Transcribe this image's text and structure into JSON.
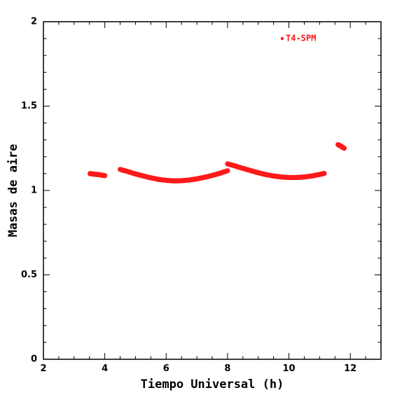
{
  "colors": {
    "series": "#ff1a1a",
    "axis": "#000000",
    "background": "#ffffff"
  },
  "chart_data": {
    "type": "scatter",
    "title": "",
    "xlabel": "Tiempo Universal (h)",
    "ylabel": "Masas de aire",
    "xlim": [
      2,
      13
    ],
    "ylim": [
      0,
      2
    ],
    "x_ticks": [
      {
        "value": 2,
        "label": "2"
      },
      {
        "value": 4,
        "label": "4"
      },
      {
        "value": 6,
        "label": "6"
      },
      {
        "value": 8,
        "label": "8"
      },
      {
        "value": 10,
        "label": "10"
      },
      {
        "value": 12,
        "label": "12"
      }
    ],
    "y_ticks": [
      {
        "value": 0,
        "label": "0"
      },
      {
        "value": 0.5,
        "label": "0.5"
      },
      {
        "value": 1,
        "label": "1"
      },
      {
        "value": 1.5,
        "label": "1.5"
      },
      {
        "value": 2,
        "label": "2"
      }
    ],
    "grid": false,
    "legend": {
      "position": "top-right",
      "label": "T4-SPM"
    },
    "series": [
      {
        "name": "T4-SPM",
        "segments": [
          {
            "x": [
              3.52,
              3.6,
              3.7,
              3.8,
              3.9,
              4.0
            ],
            "y": [
              1.1,
              1.098,
              1.096,
              1.094,
              1.091,
              1.088
            ]
          },
          {
            "x": [
              4.5,
              4.75,
              5.0,
              5.25,
              5.5,
              5.75,
              6.0,
              6.25,
              6.5,
              6.75,
              7.0,
              7.25,
              7.5,
              7.75,
              8.0
            ],
            "y": [
              1.125,
              1.112,
              1.098,
              1.086,
              1.075,
              1.066,
              1.06,
              1.057,
              1.058,
              1.062,
              1.069,
              1.078,
              1.089,
              1.102,
              1.117
            ]
          },
          {
            "x": [
              8.0,
              8.25,
              8.5,
              8.75,
              9.0,
              9.25,
              9.5,
              9.75,
              10.0,
              10.25,
              10.5,
              10.75,
              11.0,
              11.15
            ],
            "y": [
              1.158,
              1.145,
              1.131,
              1.118,
              1.105,
              1.094,
              1.086,
              1.08,
              1.077,
              1.077,
              1.08,
              1.086,
              1.095,
              1.101
            ]
          },
          {
            "x": [
              11.6,
              11.7,
              11.8
            ],
            "y": [
              1.272,
              1.262,
              1.25
            ]
          }
        ]
      }
    ]
  }
}
